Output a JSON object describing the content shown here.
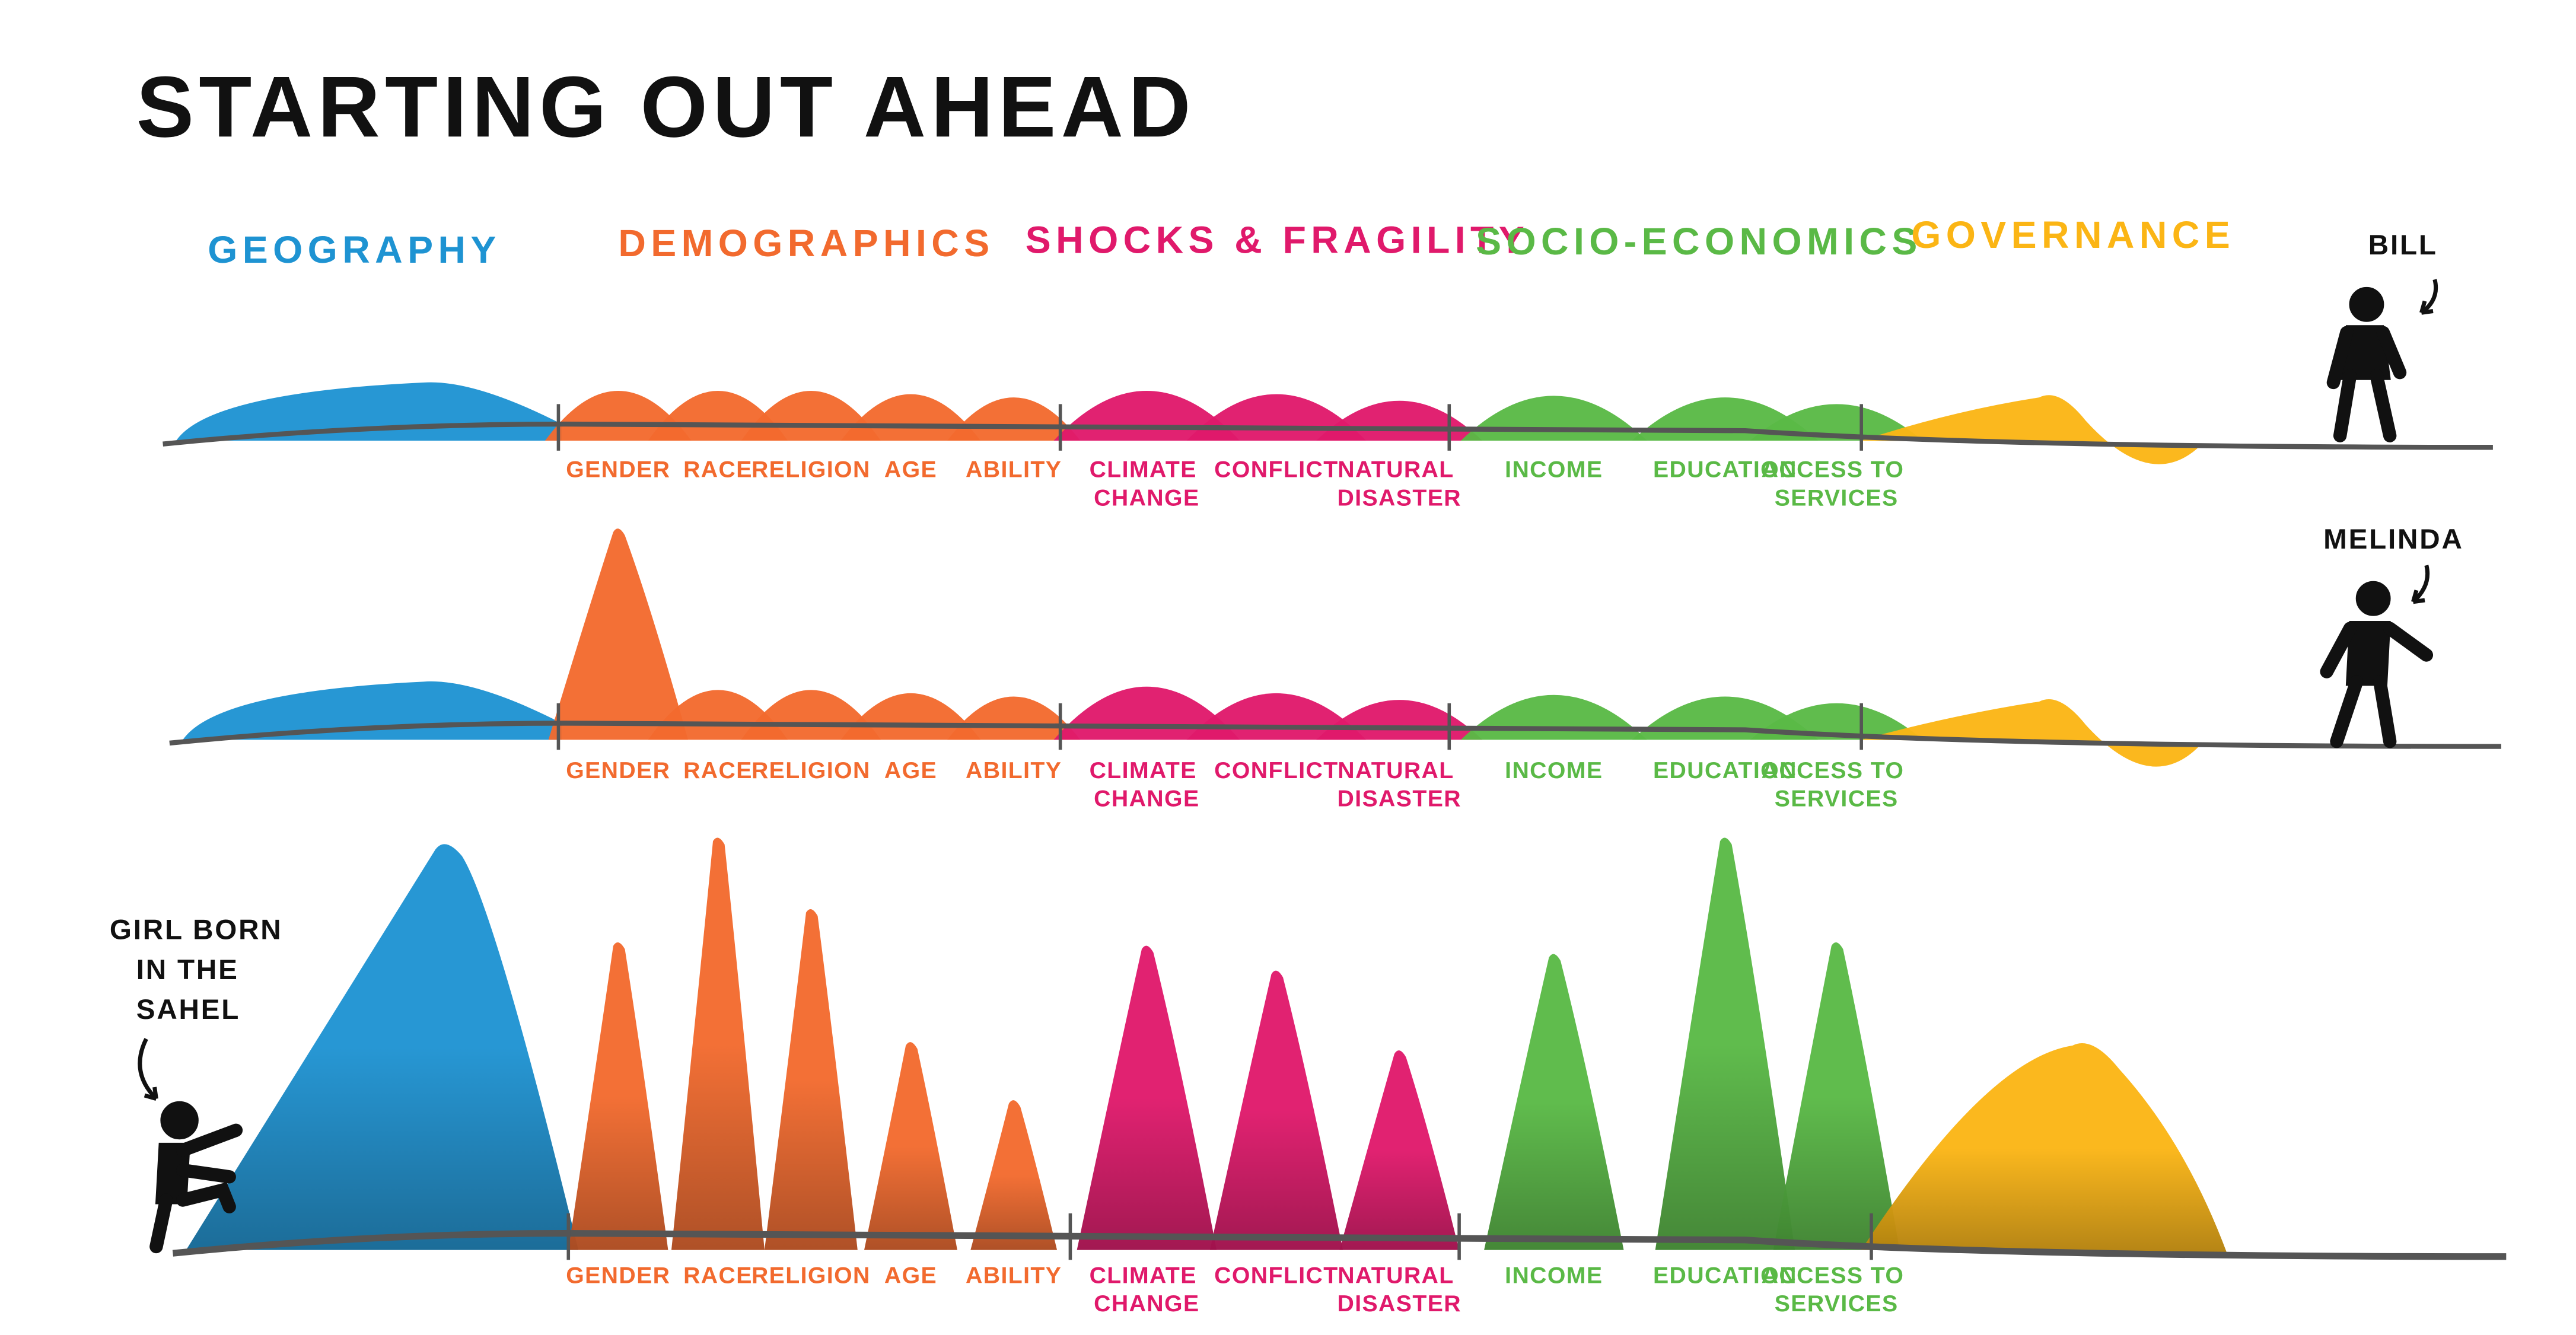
{
  "title": "STARTING OUT AHEAD",
  "categories": [
    {
      "label": "GEOGRAPHY",
      "color": "#1e93d2"
    },
    {
      "label": "DEMOGRAPHICS",
      "color": "#f26a2e"
    },
    {
      "label": "SHOCKS & FRAGILITY",
      "color": "#e0196b"
    },
    {
      "label": "SOCIO-ECONOMICS",
      "color": "#5ab946"
    },
    {
      "label": "GOVERNANCE",
      "color": "#fbb515"
    }
  ],
  "factors": [
    {
      "label": "GEOGRAPHY",
      "category": 0
    },
    {
      "label": "GENDER",
      "category": 1
    },
    {
      "label": "RACE",
      "category": 1
    },
    {
      "label": "RELIGION",
      "category": 1
    },
    {
      "label": "AGE",
      "category": 1
    },
    {
      "label": "ABILITY",
      "category": 1
    },
    {
      "label": "CLIMATE CHANGE",
      "category": 2
    },
    {
      "label": "CONFLICT",
      "category": 2
    },
    {
      "label": "NATURAL DISASTER",
      "category": 2
    },
    {
      "label": "INCOME",
      "category": 3
    },
    {
      "label": "EDUCATION",
      "category": 3
    },
    {
      "label": "ACCESS TO SERVICES",
      "category": 3
    },
    {
      "label": "GOVERNANCE",
      "category": 4
    }
  ],
  "rows": [
    {
      "person": "BILL",
      "barrier_levels": [
        35,
        30,
        30,
        30,
        28,
        26,
        30,
        28,
        24,
        27,
        26,
        22,
        28
      ]
    },
    {
      "person": "MELINDA",
      "barrier_levels": [
        35,
        127,
        30,
        30,
        28,
        26,
        32,
        28,
        24,
        27,
        26,
        22,
        25
      ]
    },
    {
      "person": "GIRL BORN IN THE SAHEL",
      "barrier_levels": [
        245,
        185,
        248,
        205,
        125,
        90,
        183,
        168,
        120,
        178,
        248,
        185,
        125
      ]
    }
  ]
}
